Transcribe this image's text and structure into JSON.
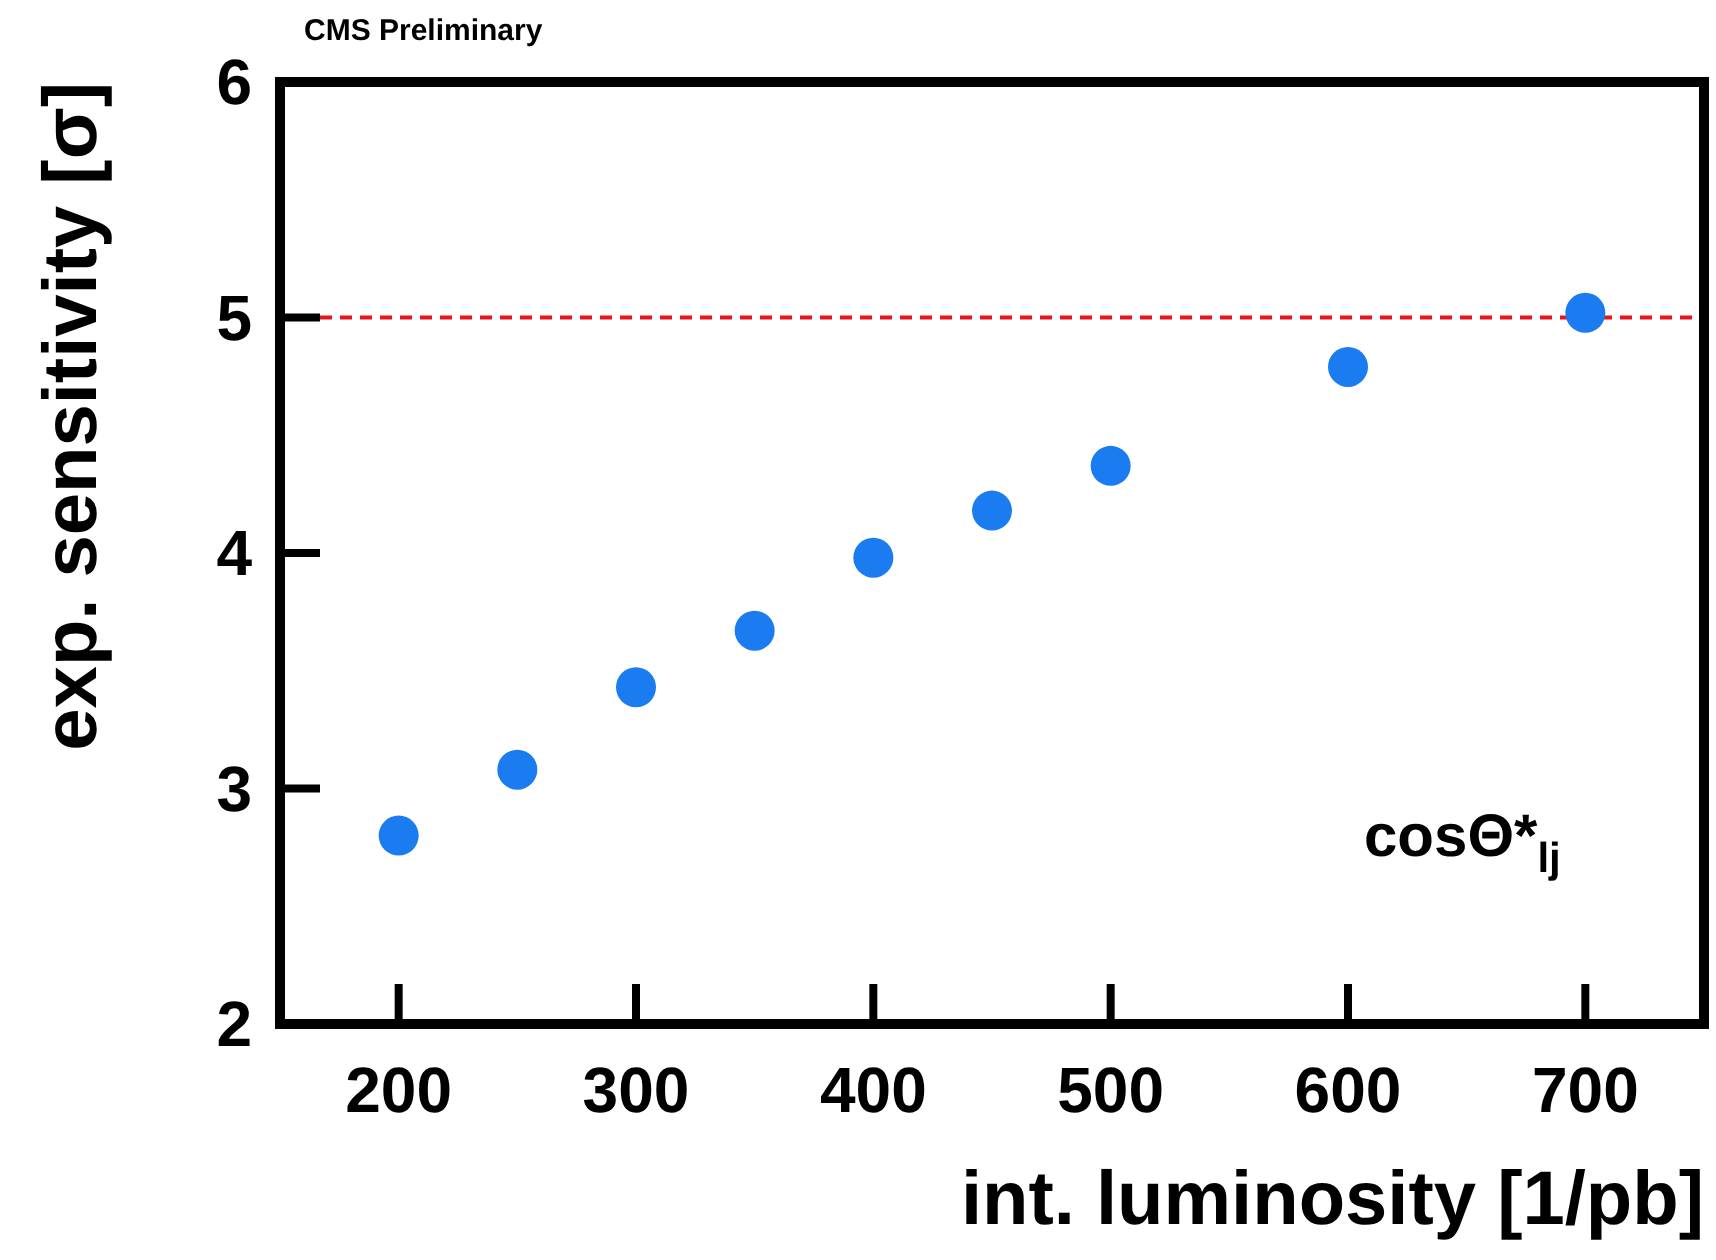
{
  "chart_data": {
    "type": "scatter",
    "title": "CMS Preliminary",
    "xlabel": "int. luminosity [1/pb]",
    "ylabel": "exp. sensitivity [σ]",
    "x": [
      200,
      250,
      300,
      350,
      400,
      450,
      500,
      600,
      700
    ],
    "series": [
      {
        "color": "#1a7cf0",
        "values": [
          2.8,
          3.08,
          3.43,
          3.67,
          3.98,
          4.18,
          4.37,
          4.79,
          5.02
        ]
      }
    ],
    "xlim": [
      150,
      750
    ],
    "xticks": [
      200,
      300,
      400,
      500,
      600,
      700
    ],
    "ylim": [
      2,
      6
    ],
    "yticks": [
      2,
      3,
      4,
      5,
      6
    ],
    "ref_lines": [
      {
        "axis": "y",
        "value": 5,
        "color": "#e8141c",
        "line_style": "dashed"
      }
    ],
    "annotations": [
      "cosΘ*$_{lj}$"
    ],
    "marker": "circle"
  }
}
